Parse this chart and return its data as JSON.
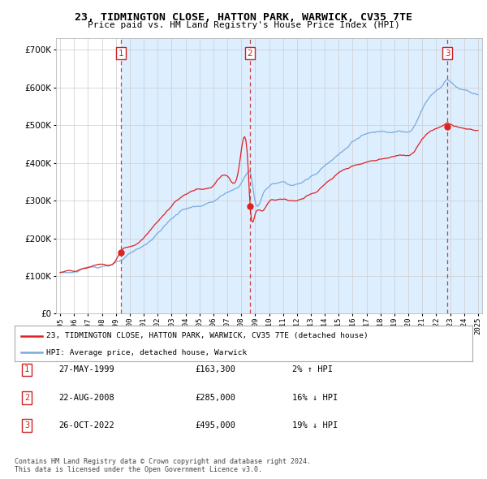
{
  "title": "23, TIDMINGTON CLOSE, HATTON PARK, WARWICK, CV35 7TE",
  "subtitle": "Price paid vs. HM Land Registry's House Price Index (HPI)",
  "ylim": [
    0,
    730000
  ],
  "yticks": [
    0,
    100000,
    200000,
    300000,
    400000,
    500000,
    600000,
    700000
  ],
  "sale_color": "#dd2222",
  "hpi_color": "#7aaadd",
  "shade_color": "#ddeeff",
  "annotation_box_color": "#cc2222",
  "sale_times": [
    1999.375,
    2008.625,
    2022.792
  ],
  "sale_prices": [
    163300,
    285000,
    495000
  ],
  "legend_sale_label": "23, TIDMINGTON CLOSE, HATTON PARK, WARWICK, CV35 7TE (detached house)",
  "legend_hpi_label": "HPI: Average price, detached house, Warwick",
  "table_rows": [
    {
      "num": "1",
      "date": "27-MAY-1999",
      "price": "£163,300",
      "pct": "2% ↑ HPI"
    },
    {
      "num": "2",
      "date": "22-AUG-2008",
      "price": "£285,000",
      "pct": "16% ↓ HPI"
    },
    {
      "num": "3",
      "date": "26-OCT-2022",
      "price": "£495,000",
      "pct": "19% ↓ HPI"
    }
  ],
  "footer": "Contains HM Land Registry data © Crown copyright and database right 2024.\nThis data is licensed under the Open Government Licence v3.0.",
  "background_color": "#ffffff",
  "xlim_left": 1994.7,
  "xlim_right": 2025.3
}
